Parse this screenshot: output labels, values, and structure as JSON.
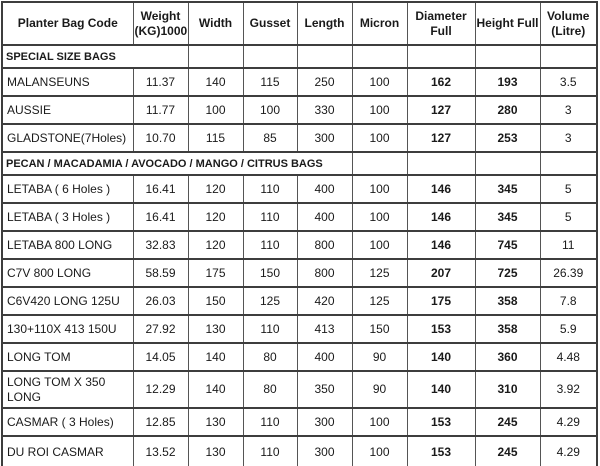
{
  "table": {
    "columns": [
      "Planter Bag Code",
      "Weight (KG)1000",
      "Width",
      "Gusset",
      "Length",
      "Micron",
      "Diameter Full",
      "Height Full",
      "Volume (Litre)"
    ],
    "rows": [
      {
        "type": "section",
        "label": "SPECIAL SIZE BAGS",
        "span": 2
      },
      {
        "type": "data",
        "cells": [
          "MALANSEUNS",
          "11.37",
          "140",
          "115",
          "250",
          "100",
          "162",
          "193",
          "3.5"
        ]
      },
      {
        "type": "data",
        "cells": [
          "AUSSIE",
          "11.77",
          "100",
          "100",
          "330",
          "100",
          "127",
          "280",
          "3"
        ]
      },
      {
        "type": "data",
        "cells": [
          "GLADSTONE(7Holes)",
          "10.70",
          "115",
          "85",
          "300",
          "100",
          "127",
          "253",
          "3"
        ]
      },
      {
        "type": "section",
        "label": "PECAN / MACADAMIA / AVOCADO / MANGO / CITRUS BAGS",
        "span": 5
      },
      {
        "type": "data",
        "cells": [
          "LETABA ( 6 Holes )",
          "16.41",
          "120",
          "110",
          "400",
          "100",
          "146",
          "345",
          "5"
        ]
      },
      {
        "type": "data",
        "cells": [
          "LETABA  ( 3 Holes )",
          "16.41",
          "120",
          "110",
          "400",
          "100",
          "146",
          "345",
          "5"
        ]
      },
      {
        "type": "data",
        "cells": [
          "LETABA 800 LONG",
          "32.83",
          "120",
          "110",
          "800",
          "100",
          "146",
          "745",
          "11"
        ]
      },
      {
        "type": "data",
        "cells": [
          "C7V 800 LONG",
          "58.59",
          "175",
          "150",
          "800",
          "125",
          "207",
          "725",
          "26.39"
        ]
      },
      {
        "type": "data",
        "cells": [
          "C6V420 LONG 125U",
          "26.03",
          "150",
          "125",
          "420",
          "125",
          "175",
          "358",
          "7.8"
        ]
      },
      {
        "type": "data",
        "cells": [
          "130+110X 413 150U",
          "27.92",
          "130",
          "110",
          "413",
          "150",
          "153",
          "358",
          "5.9"
        ]
      },
      {
        "type": "data",
        "cells": [
          "LONG TOM",
          "14.05",
          "140",
          "80",
          "400",
          "90",
          "140",
          "360",
          "4.48"
        ]
      },
      {
        "type": "data",
        "cells": [
          "LONG TOM  X 350 LONG",
          "12.29",
          "140",
          "80",
          "350",
          "90",
          "140",
          "310",
          "3.92"
        ],
        "tall": true
      },
      {
        "type": "data",
        "cells": [
          "CASMAR ( 3 Holes)",
          "12.85",
          "130",
          "110",
          "300",
          "100",
          "153",
          "245",
          "4.29"
        ]
      },
      {
        "type": "data",
        "cells": [
          "DU ROI CASMAR",
          "13.52",
          "130",
          "110",
          "300",
          "100",
          "153",
          "245",
          "4.29"
        ]
      }
    ],
    "column_count": 9
  }
}
